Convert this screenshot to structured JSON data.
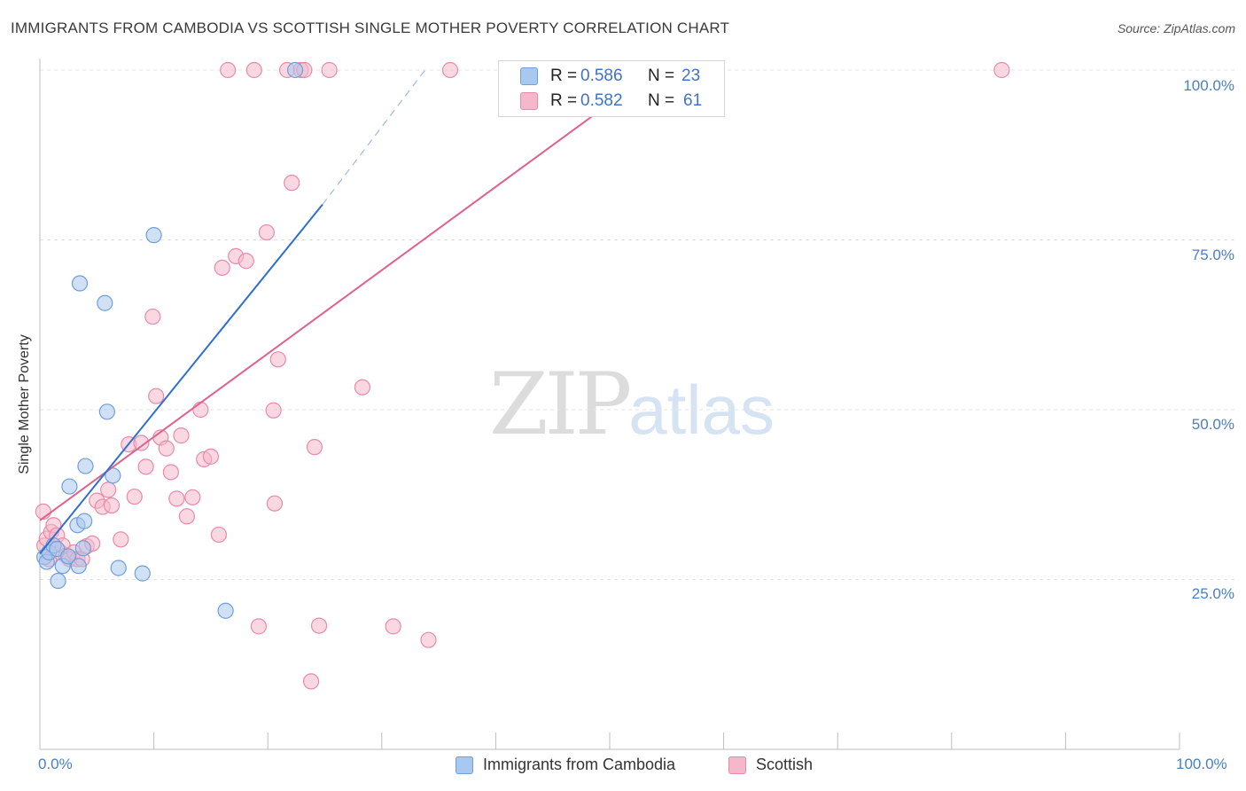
{
  "header": {
    "title": "IMMIGRANTS FROM CAMBODIA VS SCOTTISH SINGLE MOTHER POVERTY CORRELATION CHART",
    "source": "Source: ZipAtlas.com"
  },
  "watermark": {
    "zip": "ZIP",
    "atlas": "atlas"
  },
  "legend": {
    "r_label": "R =",
    "n_label": "N =",
    "series": [
      {
        "name": "Immigrants from Cambodia",
        "r": "0.586",
        "n": "23"
      },
      {
        "name": "Scottish",
        "r": "0.582",
        "n": "61"
      }
    ]
  },
  "colors": {
    "blue_fill": "#a9c8ef",
    "blue_stroke": "#6f9fdc",
    "blue_line": "#2f6fd0",
    "pink_fill": "#f5b8cb",
    "pink_stroke": "#e98aa8",
    "pink_line": "#e0628a",
    "tick_text": "#4a7fc1",
    "grid": "#e3e3e3"
  },
  "chart_data": {
    "type": "scatter",
    "title": "IMMIGRANTS FROM CAMBODIA VS SCOTTISH SINGLE MOTHER POVERTY CORRELATION CHART",
    "xlabel": "",
    "ylabel": "Single Mother Poverty",
    "xlim": [
      0,
      100
    ],
    "ylim": [
      0,
      100
    ],
    "x_tick_labels": [
      "0.0%",
      "100.0%"
    ],
    "y_ticks": [
      {
        "value": 25,
        "label": "25.0%"
      },
      {
        "value": 50,
        "label": "50.0%"
      },
      {
        "value": 75,
        "label": "75.0%"
      },
      {
        "value": 100,
        "label": "100.0%"
      }
    ],
    "grid": true,
    "legend_position": "top-center",
    "series": [
      {
        "name": "Immigrants from Cambodia",
        "color": "blue",
        "trend": {
          "x": [
            0,
            24.8
          ],
          "y": [
            28.8,
            80.2
          ],
          "dashed_to": [
            33.8,
            100
          ]
        },
        "points": [
          [
            0.4,
            28.3
          ],
          [
            0.6,
            27.6
          ],
          [
            0.8,
            29.0
          ],
          [
            1.2,
            30.0
          ],
          [
            1.5,
            29.5
          ],
          [
            1.6,
            24.8
          ],
          [
            2.0,
            27.0
          ],
          [
            2.5,
            28.4
          ],
          [
            2.6,
            38.7
          ],
          [
            3.3,
            33.0
          ],
          [
            3.4,
            27.0
          ],
          [
            3.5,
            68.6
          ],
          [
            3.8,
            29.6
          ],
          [
            3.9,
            33.6
          ],
          [
            4.0,
            41.7
          ],
          [
            5.7,
            65.7
          ],
          [
            5.9,
            49.7
          ],
          [
            6.4,
            40.3
          ],
          [
            6.9,
            26.7
          ],
          [
            9.0,
            25.9
          ],
          [
            10.0,
            75.7
          ],
          [
            16.3,
            20.4
          ],
          [
            22.4,
            100.0
          ]
        ]
      },
      {
        "name": "Scottish",
        "color": "pink",
        "trend": {
          "x": [
            0,
            54.0
          ],
          "y": [
            33.7,
            100.0
          ]
        },
        "points": [
          [
            0.3,
            35.0
          ],
          [
            0.4,
            30.0
          ],
          [
            0.6,
            31.0
          ],
          [
            0.8,
            28.0
          ],
          [
            1.0,
            32.0
          ],
          [
            1.2,
            33.0
          ],
          [
            1.5,
            31.5
          ],
          [
            1.8,
            29.0
          ],
          [
            2.0,
            30.0
          ],
          [
            2.3,
            28.5
          ],
          [
            2.6,
            28.0
          ],
          [
            3.0,
            29.0
          ],
          [
            3.3,
            28.0
          ],
          [
            3.7,
            28.0
          ],
          [
            4.1,
            29.9
          ],
          [
            4.6,
            30.3
          ],
          [
            5.0,
            36.6
          ],
          [
            5.5,
            35.7
          ],
          [
            6.0,
            38.2
          ],
          [
            6.3,
            35.9
          ],
          [
            7.1,
            30.9
          ],
          [
            7.8,
            44.9
          ],
          [
            8.3,
            37.2
          ],
          [
            8.9,
            45.1
          ],
          [
            9.3,
            41.6
          ],
          [
            9.9,
            63.7
          ],
          [
            10.2,
            52.0
          ],
          [
            10.6,
            45.9
          ],
          [
            11.1,
            44.3
          ],
          [
            11.5,
            40.8
          ],
          [
            12.0,
            36.9
          ],
          [
            12.4,
            46.2
          ],
          [
            12.9,
            34.3
          ],
          [
            13.4,
            37.1
          ],
          [
            14.1,
            50.0
          ],
          [
            14.4,
            42.7
          ],
          [
            15.0,
            43.1
          ],
          [
            15.7,
            31.6
          ],
          [
            16.0,
            70.9
          ],
          [
            16.5,
            100.0
          ],
          [
            17.2,
            72.6
          ],
          [
            18.1,
            71.9
          ],
          [
            18.8,
            100.0
          ],
          [
            19.2,
            18.1
          ],
          [
            19.9,
            76.1
          ],
          [
            20.5,
            49.9
          ],
          [
            20.6,
            36.2
          ],
          [
            20.9,
            57.4
          ],
          [
            21.7,
            100.0
          ],
          [
            22.1,
            83.4
          ],
          [
            22.9,
            100.0
          ],
          [
            23.2,
            100.0
          ],
          [
            23.8,
            10.0
          ],
          [
            24.1,
            44.5
          ],
          [
            24.5,
            18.2
          ],
          [
            25.4,
            100.0
          ],
          [
            28.3,
            53.3
          ],
          [
            31.0,
            18.1
          ],
          [
            34.1,
            16.1
          ],
          [
            36.0,
            100.0
          ],
          [
            84.4,
            100.0
          ]
        ]
      }
    ]
  }
}
